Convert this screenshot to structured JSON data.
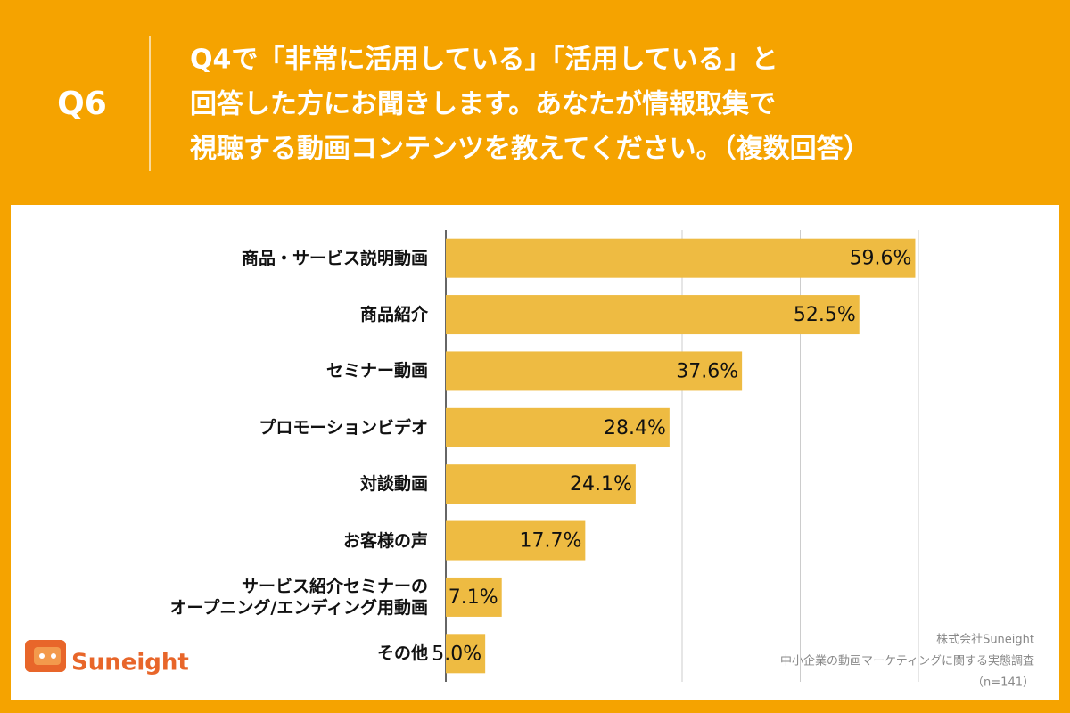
{
  "chart_data": {
    "type": "bar",
    "orientation": "horizontal",
    "question_label": "Q6",
    "title_lines": [
      "Q4で「非常に活用している」「活用している」と",
      "回答した方にお聞きします。あなたが情報取集で",
      "視聴する動画コンテンツを教えてください。（複数回答）"
    ],
    "categories": [
      "商品・サービス説明動画",
      "商品紹介",
      "セミナー動画",
      "プロモーションビデオ",
      "対談動画",
      "お客様の声",
      "サービス紹介セミナーの\nオープニング/エンディング用動画",
      "その他"
    ],
    "values": [
      59.6,
      52.5,
      37.6,
      28.4,
      24.1,
      17.7,
      7.1,
      5.0
    ],
    "value_labels": [
      "59.6%",
      "52.5%",
      "37.6%",
      "28.4%",
      "24.1%",
      "17.7%",
      "7.1%",
      "5.0%"
    ],
    "color": "#eebb42",
    "xlim": [
      0,
      60
    ],
    "xticks": [
      0,
      15,
      30,
      45,
      60
    ],
    "grid": true,
    "logo": "Suneight",
    "source_lines": [
      "株式会社Suneight",
      "中小企業の動画マーケティングに関する実態調査",
      "（n=141）"
    ]
  }
}
